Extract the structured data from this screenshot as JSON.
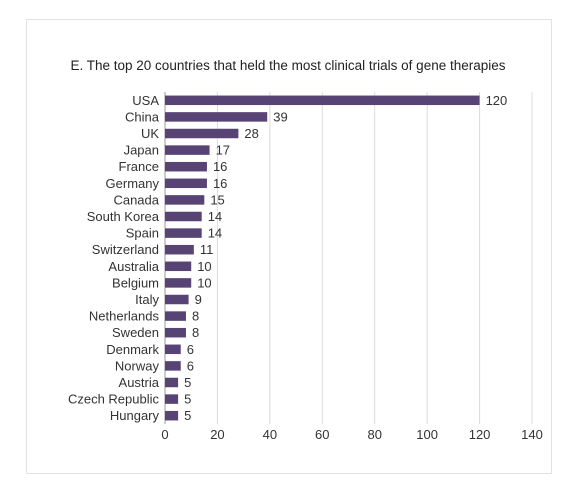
{
  "chart_data": {
    "type": "bar",
    "orientation": "horizontal",
    "title": "E. The top 20 countries that held the most clinical trials of gene therapies",
    "xlabel": "",
    "ylabel": "",
    "xlim": [
      0,
      140
    ],
    "xticks": [
      0,
      20,
      40,
      60,
      80,
      100,
      120,
      140
    ],
    "grid": true,
    "legend": "none",
    "bar_color": "#574475",
    "categories": [
      "USA",
      "China",
      "UK",
      "Japan",
      "France",
      "Germany",
      "Canada",
      "South Korea",
      "Spain",
      "Switzerland",
      "Australia",
      "Belgium",
      "Italy",
      "Netherlands",
      "Sweden",
      "Denmark",
      "Norway",
      "Austria",
      "Czech Republic",
      "Hungary"
    ],
    "values": [
      120,
      39,
      28,
      17,
      16,
      16,
      15,
      14,
      14,
      11,
      10,
      10,
      9,
      8,
      8,
      6,
      6,
      5,
      5,
      5
    ]
  }
}
